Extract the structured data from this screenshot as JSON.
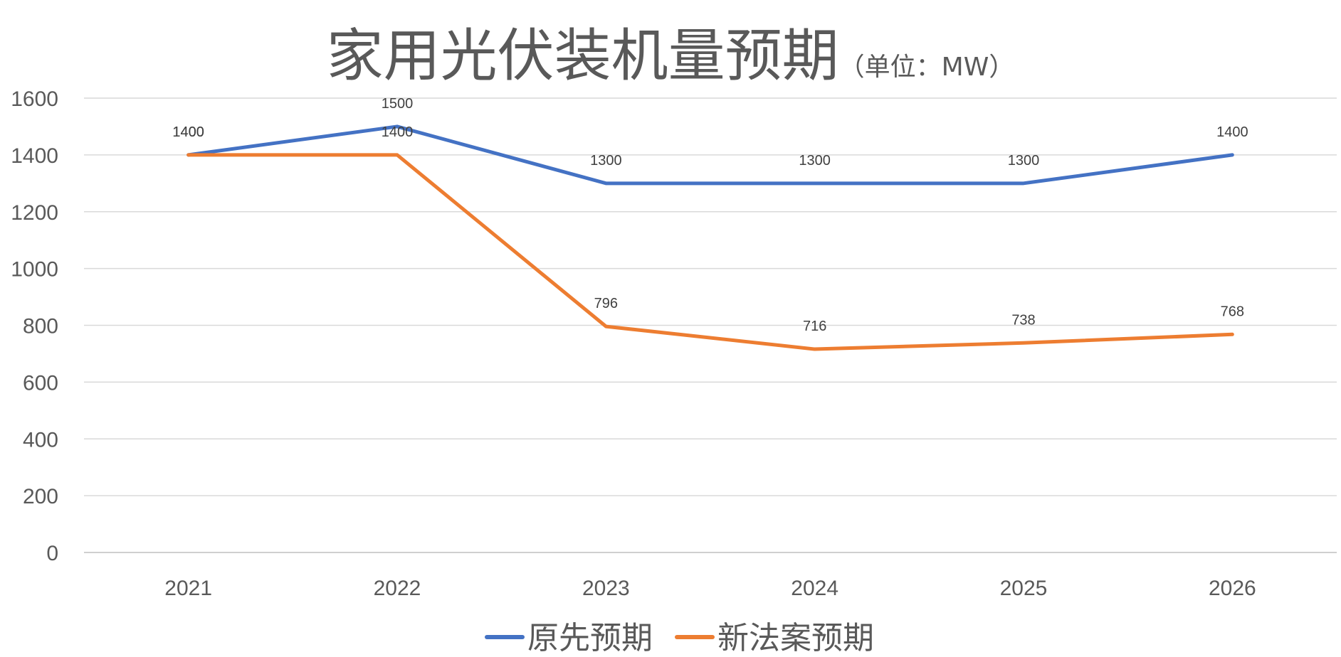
{
  "chart_data": {
    "type": "line",
    "title": "家用光伏装机量预期",
    "subtitle": "（单位：MW）",
    "xlabel": "",
    "ylabel": "",
    "categories": [
      "2021",
      "2022",
      "2023",
      "2024",
      "2025",
      "2026"
    ],
    "ylim": [
      0,
      1600
    ],
    "yticks": [
      0,
      200,
      400,
      600,
      800,
      1000,
      1200,
      1400,
      1600
    ],
    "grid": true,
    "legend": "bottom",
    "series": [
      {
        "name": "原先预期",
        "color": "#4472C4",
        "values": [
          1400,
          1500,
          1300,
          1300,
          1300,
          1400
        ]
      },
      {
        "name": "新法案预期",
        "color": "#ED7D31",
        "values": [
          1400,
          1400,
          796,
          716,
          738,
          768
        ]
      }
    ]
  }
}
